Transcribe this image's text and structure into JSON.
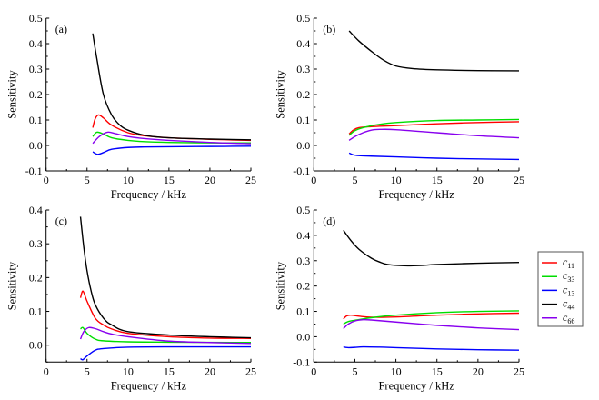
{
  "legend": {
    "placement": "right",
    "entries": [
      {
        "label": "c",
        "sub": "11",
        "color": "#ff0000"
      },
      {
        "label": "c",
        "sub": "33",
        "color": "#00dd00"
      },
      {
        "label": "c",
        "sub": "13",
        "color": "#0000ff"
      },
      {
        "label": "c",
        "sub": "44",
        "color": "#000000"
      },
      {
        "label": "c",
        "sub": "66",
        "color": "#8800ee"
      }
    ]
  },
  "chart_data": [
    {
      "type": "line",
      "panel_label": "(a)",
      "xlabel": "Frequency / kHz",
      "ylabel": "Sensitivity",
      "xlim": [
        0,
        25
      ],
      "ylim": [
        -0.1,
        0.5
      ],
      "xticks": [
        0,
        5,
        10,
        15,
        20,
        25
      ],
      "yticks": [
        -0.1,
        0.0,
        0.1,
        0.2,
        0.3,
        0.4,
        0.5
      ],
      "ytick_labels": [
        "-0.1",
        "0.0",
        "0.1",
        "0.2",
        "0.3",
        "0.4",
        "0.5"
      ],
      "series": [
        {
          "name": "c11",
          "color": "#ff0000",
          "x": [
            5.7,
            6.0,
            6.4,
            7.0,
            8.0,
            10,
            12,
            15,
            20,
            25
          ],
          "y": [
            0.07,
            0.105,
            0.12,
            0.108,
            0.08,
            0.05,
            0.038,
            0.03,
            0.024,
            0.02
          ]
        },
        {
          "name": "c33",
          "color": "#00dd00",
          "x": [
            5.7,
            6.2,
            7.0,
            8.0,
            10,
            12,
            15,
            20,
            25
          ],
          "y": [
            0.035,
            0.052,
            0.045,
            0.03,
            0.02,
            0.015,
            0.012,
            0.01,
            0.01
          ]
        },
        {
          "name": "c13",
          "color": "#0000ff",
          "x": [
            5.7,
            6.3,
            7.0,
            8.0,
            10,
            12,
            15,
            20,
            25
          ],
          "y": [
            -0.025,
            -0.035,
            -0.028,
            -0.015,
            -0.008,
            -0.006,
            -0.005,
            -0.004,
            -0.003
          ]
        },
        {
          "name": "c44",
          "color": "#000000",
          "x": [
            5.7,
            6.2,
            7.0,
            8.0,
            9.0,
            10,
            12,
            15,
            20,
            25
          ],
          "y": [
            0.44,
            0.34,
            0.2,
            0.12,
            0.08,
            0.06,
            0.04,
            0.03,
            0.025,
            0.022
          ]
        },
        {
          "name": "c66",
          "color": "#8800ee",
          "x": [
            5.7,
            6.5,
            7.5,
            8.5,
            10,
            12,
            15,
            20,
            25
          ],
          "y": [
            0.008,
            0.035,
            0.052,
            0.046,
            0.035,
            0.027,
            0.02,
            0.012,
            0.007
          ]
        }
      ]
    },
    {
      "type": "line",
      "panel_label": "(b)",
      "xlabel": "Frequency / kHz",
      "ylabel": "Sensitivity",
      "xlim": [
        0,
        25
      ],
      "ylim": [
        -0.1,
        0.5
      ],
      "xticks": [
        0,
        5,
        10,
        15,
        20,
        25
      ],
      "yticks": [
        -0.1,
        0.0,
        0.1,
        0.2,
        0.3,
        0.4,
        0.5
      ],
      "ytick_labels": [
        "-0.1",
        "0.0",
        "0.1",
        "0.2",
        "0.3",
        "0.4",
        "0.5"
      ],
      "series": [
        {
          "name": "c11",
          "color": "#ff0000",
          "x": [
            4.3,
            4.8,
            5.5,
            7,
            10,
            15,
            20,
            25
          ],
          "y": [
            0.045,
            0.06,
            0.07,
            0.074,
            0.078,
            0.085,
            0.09,
            0.093
          ]
        },
        {
          "name": "c33",
          "color": "#00dd00",
          "x": [
            4.3,
            5.0,
            6.0,
            8,
            10,
            15,
            20,
            25
          ],
          "y": [
            0.04,
            0.058,
            0.07,
            0.083,
            0.09,
            0.098,
            0.1,
            0.102
          ]
        },
        {
          "name": "c13",
          "color": "#0000ff",
          "x": [
            4.3,
            4.8,
            5.5,
            7,
            10,
            15,
            20,
            25
          ],
          "y": [
            -0.03,
            -0.037,
            -0.04,
            -0.042,
            -0.045,
            -0.05,
            -0.053,
            -0.055
          ]
        },
        {
          "name": "c44",
          "color": "#000000",
          "x": [
            4.3,
            5.5,
            7,
            8.5,
            10,
            12,
            15,
            20,
            25
          ],
          "y": [
            0.45,
            0.41,
            0.37,
            0.335,
            0.312,
            0.302,
            0.297,
            0.294,
            0.293
          ]
        },
        {
          "name": "c66",
          "color": "#8800ee",
          "x": [
            4.3,
            5.0,
            6.0,
            7,
            8,
            10,
            15,
            20,
            25
          ],
          "y": [
            0.02,
            0.035,
            0.05,
            0.06,
            0.063,
            0.062,
            0.05,
            0.038,
            0.03
          ]
        }
      ]
    },
    {
      "type": "line",
      "panel_label": "(c)",
      "xlabel": "Frequency / kHz",
      "ylabel": "Sensitivity",
      "xlim": [
        0,
        25
      ],
      "ylim": [
        -0.05,
        0.4
      ],
      "xticks": [
        0,
        5,
        10,
        15,
        20,
        25
      ],
      "yticks": [
        0.0,
        0.1,
        0.2,
        0.3,
        0.4
      ],
      "ytick_labels": [
        "0.0",
        "0.1",
        "0.2",
        "0.3",
        "0.4"
      ],
      "series": [
        {
          "name": "c11",
          "color": "#ff0000",
          "x": [
            4.2,
            4.5,
            5.0,
            6.0,
            7,
            8,
            10,
            15,
            20,
            25
          ],
          "y": [
            0.14,
            0.16,
            0.13,
            0.08,
            0.06,
            0.048,
            0.035,
            0.025,
            0.021,
            0.02
          ]
        },
        {
          "name": "c33",
          "color": "#00dd00",
          "x": [
            4.2,
            4.5,
            5.0,
            6.0,
            7,
            10,
            15,
            25
          ],
          "y": [
            0.048,
            0.052,
            0.035,
            0.018,
            0.013,
            0.01,
            0.009,
            0.008
          ]
        },
        {
          "name": "c13",
          "color": "#0000ff",
          "x": [
            4.2,
            4.5,
            5.0,
            6.0,
            7,
            10,
            15,
            25
          ],
          "y": [
            -0.04,
            -0.043,
            -0.032,
            -0.015,
            -0.01,
            -0.006,
            -0.005,
            -0.005
          ]
        },
        {
          "name": "c44",
          "color": "#000000",
          "x": [
            4.2,
            4.6,
            5.0,
            5.5,
            6,
            7,
            8,
            10,
            15,
            20,
            25
          ],
          "y": [
            0.38,
            0.29,
            0.22,
            0.16,
            0.12,
            0.08,
            0.06,
            0.04,
            0.03,
            0.025,
            0.022
          ]
        },
        {
          "name": "c66",
          "color": "#8800ee",
          "x": [
            4.2,
            4.6,
            5.2,
            6,
            7,
            8,
            10,
            15,
            20,
            25
          ],
          "y": [
            0.018,
            0.04,
            0.052,
            0.049,
            0.04,
            0.033,
            0.025,
            0.012,
            0.008,
            0.005
          ]
        }
      ]
    },
    {
      "type": "line",
      "panel_label": "(d)",
      "xlabel": "Frequency / kHz",
      "ylabel": "Sensitivity",
      "xlim": [
        0,
        25
      ],
      "ylim": [
        -0.1,
        0.5
      ],
      "xticks": [
        0,
        5,
        10,
        15,
        20,
        25
      ],
      "yticks": [
        -0.1,
        0.0,
        0.1,
        0.2,
        0.3,
        0.4,
        0.5
      ],
      "ytick_labels": [
        "-0.1",
        "0.0",
        "0.1",
        "0.2",
        "0.3",
        "0.4",
        "0.5"
      ],
      "series": [
        {
          "name": "c11",
          "color": "#ff0000",
          "x": [
            3.6,
            4.0,
            4.5,
            5.5,
            7,
            10,
            15,
            20,
            25
          ],
          "y": [
            0.07,
            0.082,
            0.085,
            0.081,
            0.077,
            0.078,
            0.085,
            0.09,
            0.093
          ]
        },
        {
          "name": "c33",
          "color": "#00dd00",
          "x": [
            3.6,
            4.2,
            5,
            7,
            10,
            15,
            20,
            25
          ],
          "y": [
            0.05,
            0.06,
            0.065,
            0.075,
            0.085,
            0.095,
            0.1,
            0.102
          ]
        },
        {
          "name": "c13",
          "color": "#0000ff",
          "x": [
            3.6,
            4.2,
            5,
            6,
            8,
            10,
            15,
            20,
            25
          ],
          "y": [
            -0.04,
            -0.043,
            -0.042,
            -0.04,
            -0.041,
            -0.043,
            -0.048,
            -0.051,
            -0.053
          ]
        },
        {
          "name": "c44",
          "color": "#000000",
          "x": [
            3.6,
            4.5,
            5.5,
            7,
            8,
            9,
            11,
            13,
            15,
            20,
            25
          ],
          "y": [
            0.42,
            0.38,
            0.345,
            0.31,
            0.295,
            0.285,
            0.28,
            0.281,
            0.285,
            0.29,
            0.293
          ]
        },
        {
          "name": "c66",
          "color": "#8800ee",
          "x": [
            3.6,
            4.2,
            5,
            6,
            7,
            10,
            15,
            20,
            25
          ],
          "y": [
            0.032,
            0.05,
            0.062,
            0.067,
            0.066,
            0.058,
            0.045,
            0.035,
            0.028
          ]
        }
      ]
    }
  ]
}
